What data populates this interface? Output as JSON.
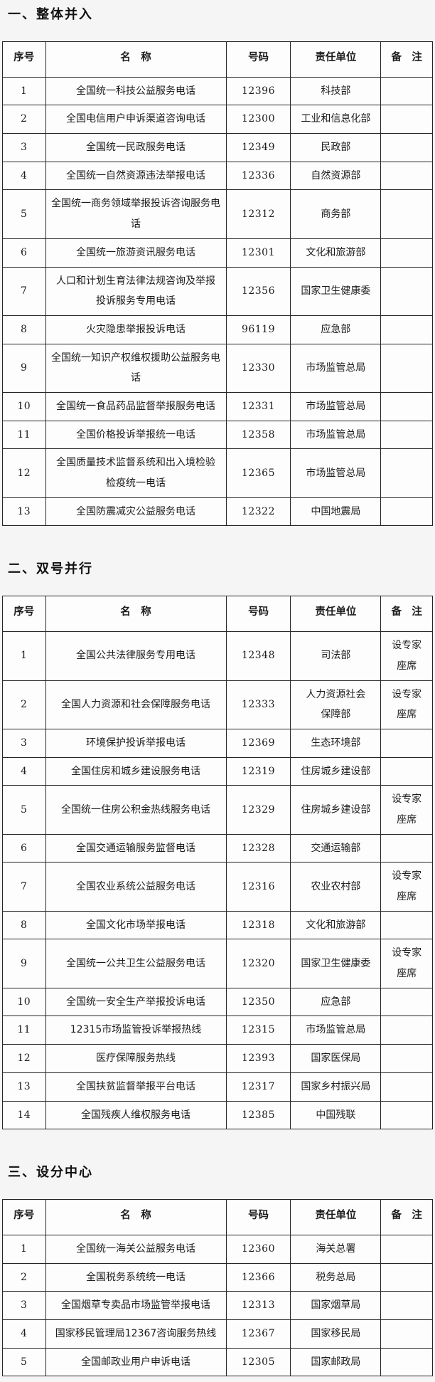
{
  "colors": {
    "page_background": "#f5f5f5",
    "cell_background": "#fdfdfd",
    "table_border": "#262626",
    "text": "#1c1c1c"
  },
  "sections": [
    {
      "title": "一、整体并入",
      "columns": [
        "序号",
        "名　称",
        "号码",
        "责任单位",
        "备　注"
      ],
      "rows": [
        {
          "no": "1",
          "name": "全国统一科技公益服务电话",
          "number": "12396",
          "unit": "科技部",
          "remark": ""
        },
        {
          "no": "2",
          "name": "全国电信用户申诉渠道咨询电话",
          "number": "12300",
          "unit": "工业和信息化部",
          "remark": ""
        },
        {
          "no": "3",
          "name": "全国统一民政服务电话",
          "number": "12349",
          "unit": "民政部",
          "remark": ""
        },
        {
          "no": "4",
          "name": "全国统一自然资源违法举报电话",
          "number": "12336",
          "unit": "自然资源部",
          "remark": ""
        },
        {
          "no": "5",
          "name": "全国统一商务领域举报投诉咨询服务电话",
          "number": "12312",
          "unit": "商务部",
          "remark": ""
        },
        {
          "no": "6",
          "name": "全国统一旅游资讯服务电话",
          "number": "12301",
          "unit": "文化和旅游部",
          "remark": ""
        },
        {
          "no": "7",
          "name": "人口和计划生育法律法规咨询及举报\n投诉服务专用电话",
          "number": "12356",
          "unit": "国家卫生健康委",
          "remark": ""
        },
        {
          "no": "8",
          "name": "火灾隐患举报投诉电话",
          "number": "96119",
          "unit": "应急部",
          "remark": ""
        },
        {
          "no": "9",
          "name": "全国统一知识产权维权援助公益服务电话",
          "number": "12330",
          "unit": "市场监管总局",
          "remark": ""
        },
        {
          "no": "10",
          "name": "全国统一食品药品监督举报服务电话",
          "number": "12331",
          "unit": "市场监管总局",
          "remark": ""
        },
        {
          "no": "11",
          "name": "全国价格投诉举报统一电话",
          "number": "12358",
          "unit": "市场监管总局",
          "remark": ""
        },
        {
          "no": "12",
          "name": "全国质量技术监督系统和出入境检验\n检疫统一电话",
          "number": "12365",
          "unit": "市场监管总局",
          "remark": ""
        },
        {
          "no": "13",
          "name": "全国防震减灾公益服务电话",
          "number": "12322",
          "unit": "中国地震局",
          "remark": ""
        }
      ]
    },
    {
      "title": "二、双号并行",
      "columns": [
        "序号",
        "名　称",
        "号码",
        "责任单位",
        "备　注"
      ],
      "rows": [
        {
          "no": "1",
          "name": "全国公共法律服务专用电话",
          "number": "12348",
          "unit": "司法部",
          "remark": "设专家\n座席"
        },
        {
          "no": "2",
          "name": "全国人力资源和社会保障服务电话",
          "number": "12333",
          "unit": "人力资源社会\n保障部",
          "remark": "设专家\n座席"
        },
        {
          "no": "3",
          "name": "环境保护投诉举报电话",
          "number": "12369",
          "unit": "生态环境部",
          "remark": ""
        },
        {
          "no": "4",
          "name": "全国住房和城乡建设服务电话",
          "number": "12319",
          "unit": "住房城乡建设部",
          "remark": ""
        },
        {
          "no": "5",
          "name": "全国统一住房公积金热线服务电话",
          "number": "12329",
          "unit": "住房城乡建设部",
          "remark": "设专家\n座席"
        },
        {
          "no": "6",
          "name": "全国交通运输服务监督电话",
          "number": "12328",
          "unit": "交通运输部",
          "remark": ""
        },
        {
          "no": "7",
          "name": "全国农业系统公益服务电话",
          "number": "12316",
          "unit": "农业农村部",
          "remark": "设专家\n座席"
        },
        {
          "no": "8",
          "name": "全国文化市场举报电话",
          "number": "12318",
          "unit": "文化和旅游部",
          "remark": ""
        },
        {
          "no": "9",
          "name": "全国统一公共卫生公益服务电话",
          "number": "12320",
          "unit": "国家卫生健康委",
          "remark": "设专家\n座席"
        },
        {
          "no": "10",
          "name": "全国统一安全生产举报投诉电话",
          "number": "12350",
          "unit": "应急部",
          "remark": ""
        },
        {
          "no": "11",
          "name": "12315市场监管投诉举报热线",
          "number": "12315",
          "unit": "市场监管总局",
          "remark": ""
        },
        {
          "no": "12",
          "name": "医疗保障服务热线",
          "number": "12393",
          "unit": "国家医保局",
          "remark": ""
        },
        {
          "no": "13",
          "name": "全国扶贫监督举报平台电话",
          "number": "12317",
          "unit": "国家乡村振兴局",
          "remark": ""
        },
        {
          "no": "14",
          "name": "全国残疾人维权服务电话",
          "number": "12385",
          "unit": "中国残联",
          "remark": ""
        }
      ]
    },
    {
      "title": "三、设分中心",
      "columns": [
        "序号",
        "名　称",
        "号码",
        "责任单位",
        "备　注"
      ],
      "rows": [
        {
          "no": "1",
          "name": "全国统一海关公益服务电话",
          "number": "12360",
          "unit": "海关总署",
          "remark": ""
        },
        {
          "no": "2",
          "name": "全国税务系统统一电话",
          "number": "12366",
          "unit": "税务总局",
          "remark": ""
        },
        {
          "no": "3",
          "name": "全国烟草专卖品市场监管举报电话",
          "number": "12313",
          "unit": "国家烟草局",
          "remark": ""
        },
        {
          "no": "4",
          "name": "国家移民管理局12367咨询服务热线",
          "number": "12367",
          "unit": "国家移民局",
          "remark": ""
        },
        {
          "no": "5",
          "name": "全国邮政业用户申诉电话",
          "number": "12305",
          "unit": "国家邮政局",
          "remark": ""
        }
      ]
    }
  ]
}
